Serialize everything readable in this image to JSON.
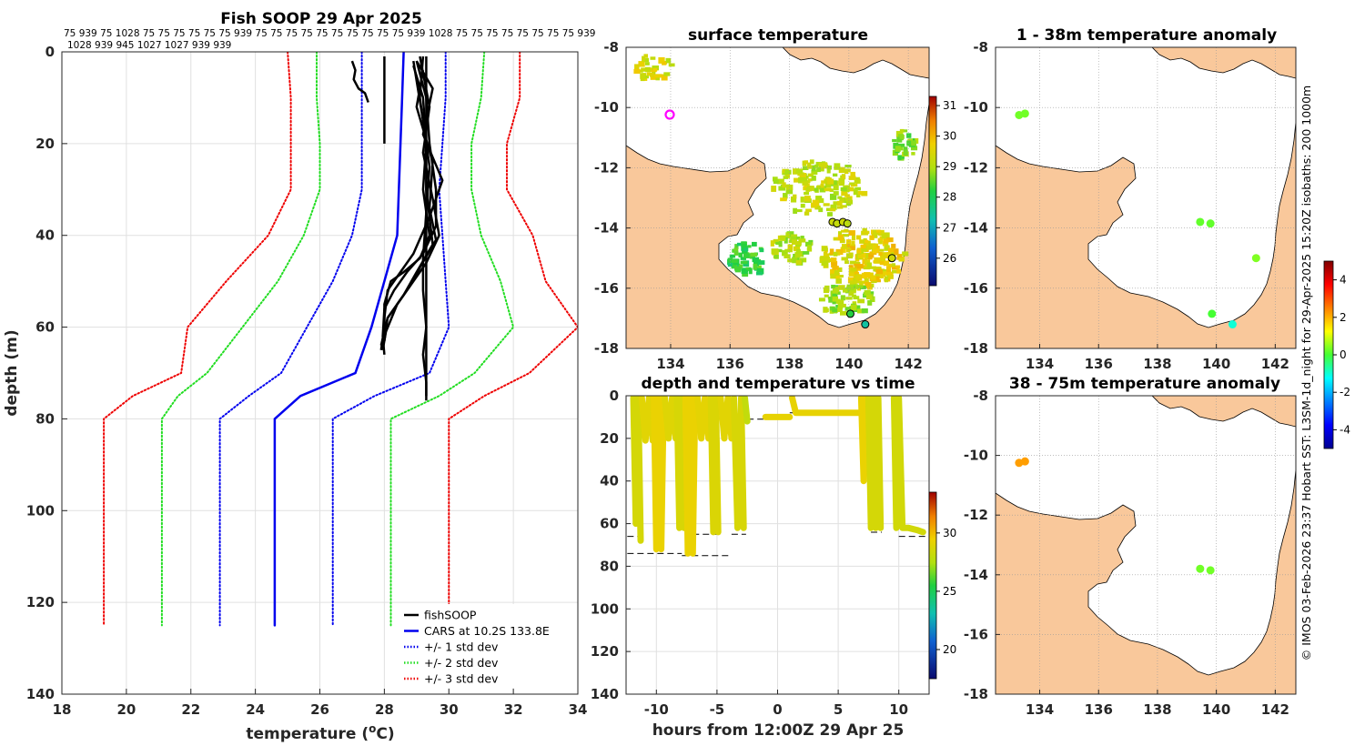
{
  "chart_data": [
    {
      "type": "line",
      "title": "Fish SOOP 29 Apr 2025",
      "header_numbers_line1": "75 939 75 1028 75 75 75 75 75 75 939 75 75 75 75 75 75 75 75 75 75 939 1028 75 75 75 75 75 75 75 75 939",
      "header_numbers_line2": "1028 939 945 1027 1027 939 939",
      "xlabel": "temperature (°C)",
      "ylabel": "depth (m)",
      "xlim": [
        18,
        34
      ],
      "ylim": [
        140,
        0
      ],
      "xticks": [
        "18",
        "20",
        "22",
        "24",
        "26",
        "28",
        "30",
        "32",
        "34"
      ],
      "yticks": [
        "0",
        "20",
        "40",
        "60",
        "80",
        "100",
        "120",
        "140"
      ],
      "legend": [
        "fishSOOP",
        "CARS at 10.2S 133.8E",
        "+/- 1 std dev",
        "+/- 2 std dev",
        "+/- 3 std dev"
      ],
      "legend_colors": [
        "#000000",
        "#0000ee",
        "#0000ee",
        "#22dd22",
        "#ee0000"
      ],
      "series": [
        {
          "name": "CARS mean",
          "color": "#0000ee",
          "depth": [
            0,
            10,
            20,
            30,
            40,
            50,
            60,
            70,
            75,
            80,
            125
          ],
          "temp": [
            28.6,
            28.55,
            28.5,
            28.45,
            28.4,
            28.0,
            27.6,
            27.1,
            25.4,
            24.6,
            24.6
          ]
        },
        {
          "name": "-1 std",
          "color": "#0000ee",
          "dotted": true,
          "depth": [
            0,
            10,
            20,
            30,
            40,
            50,
            60,
            70,
            75,
            80,
            125
          ],
          "temp": [
            27.3,
            27.3,
            27.3,
            27.3,
            27.0,
            26.4,
            25.6,
            24.8,
            23.8,
            22.9,
            22.9
          ]
        },
        {
          "name": "+1 std",
          "color": "#0000ee",
          "dotted": true,
          "depth": [
            0,
            10,
            20,
            30,
            40,
            50,
            60,
            70,
            75,
            80,
            125
          ],
          "temp": [
            29.9,
            29.9,
            29.8,
            29.7,
            29.8,
            29.9,
            30.0,
            29.4,
            27.7,
            26.4,
            26.4
          ]
        },
        {
          "name": "-2 std",
          "color": "#22dd22",
          "dotted": true,
          "depth": [
            0,
            10,
            20,
            30,
            40,
            50,
            60,
            70,
            75,
            80,
            125
          ],
          "temp": [
            25.9,
            25.9,
            26.0,
            26.0,
            25.5,
            24.7,
            23.6,
            22.5,
            21.6,
            21.1,
            21.1
          ]
        },
        {
          "name": "+2 std",
          "color": "#22dd22",
          "dotted": true,
          "depth": [
            0,
            10,
            20,
            30,
            40,
            50,
            60,
            70,
            75,
            80,
            125
          ],
          "temp": [
            31.1,
            31.0,
            30.7,
            30.7,
            31.0,
            31.6,
            32.0,
            30.8,
            29.7,
            28.2,
            28.2
          ]
        },
        {
          "name": "-3 std",
          "color": "#ee0000",
          "dotted": true,
          "depth": [
            0,
            10,
            20,
            30,
            40,
            50,
            60,
            70,
            75,
            80,
            125
          ],
          "temp": [
            25.0,
            25.1,
            25.1,
            25.1,
            24.4,
            23.1,
            21.9,
            21.7,
            20.2,
            19.3,
            19.3
          ]
        },
        {
          "name": "+3 std",
          "color": "#ee0000",
          "dotted": true,
          "depth": [
            0,
            10,
            20,
            30,
            40,
            50,
            60,
            70,
            75,
            80,
            125
          ],
          "temp": [
            32.2,
            32.2,
            31.8,
            31.8,
            32.6,
            33.0,
            34.0,
            32.5,
            31.1,
            30.0,
            30.0
          ]
        }
      ],
      "fishsoop_profiles": [
        {
          "depth": [
            2,
            4,
            6,
            8,
            9,
            11
          ],
          "temp": [
            27.0,
            27.1,
            27.05,
            27.2,
            27.4,
            27.5
          ]
        },
        {
          "depth": [
            1,
            5,
            10,
            15,
            20
          ],
          "temp": [
            28.0,
            28.0,
            28.0,
            28.0,
            28.0
          ]
        },
        {
          "depth": [
            1,
            10,
            20,
            30,
            40,
            45,
            48,
            50,
            55,
            60,
            65
          ],
          "temp": [
            29.2,
            29.1,
            29.3,
            29.2,
            29.4,
            29.1,
            28.6,
            28.2,
            28.0,
            28.0,
            27.9
          ]
        },
        {
          "depth": [
            2,
            10,
            20,
            30,
            38,
            44,
            48,
            52,
            56,
            62,
            66
          ],
          "temp": [
            29.0,
            29.3,
            29.4,
            29.6,
            29.6,
            29.2,
            28.7,
            28.3,
            28.0,
            27.95,
            28.0
          ]
        },
        {
          "depth": [
            1,
            12,
            22,
            32,
            40,
            46,
            50,
            54,
            58,
            63
          ],
          "temp": [
            29.1,
            29.4,
            29.2,
            29.5,
            29.7,
            29.3,
            28.9,
            28.5,
            28.1,
            28.0
          ]
        },
        {
          "depth": [
            3,
            10,
            20,
            30,
            42,
            48,
            53,
            58,
            64
          ],
          "temp": [
            28.9,
            29.2,
            29.3,
            29.3,
            29.5,
            29.0,
            28.6,
            28.1,
            27.9
          ]
        },
        {
          "depth": [
            1,
            10,
            20,
            30,
            40,
            50,
            55,
            60,
            65,
            70,
            75
          ],
          "temp": [
            29.3,
            29.3,
            29.3,
            29.3,
            29.3,
            29.3,
            29.3,
            29.3,
            29.3,
            29.3,
            29.3
          ]
        },
        {
          "depth": [
            2,
            15,
            25,
            35,
            45,
            52,
            60,
            66,
            72,
            76
          ],
          "temp": [
            28.9,
            29.2,
            29.4,
            29.3,
            29.2,
            29.2,
            29.3,
            29.2,
            29.3,
            29.3
          ]
        },
        {
          "depth": [
            2,
            8,
            18,
            28,
            36,
            44,
            49,
            52,
            58,
            62
          ],
          "temp": [
            29.0,
            29.5,
            29.2,
            29.8,
            29.4,
            28.9,
            28.4,
            28.1,
            28.0,
            28.0
          ]
        },
        {
          "depth": [
            4,
            12,
            24,
            34,
            41,
            47,
            51,
            55,
            61,
            65
          ],
          "temp": [
            29.2,
            29.0,
            29.5,
            29.4,
            29.6,
            29.1,
            28.8,
            28.4,
            28.05,
            27.95
          ]
        }
      ]
    },
    {
      "type": "heatmap",
      "title": "surface temperature",
      "xlim": [
        132.5,
        142.7
      ],
      "ylim": [
        -18,
        -8
      ],
      "xticks": [
        "134",
        "136",
        "138",
        "140",
        "142"
      ],
      "yticks": [
        "-8",
        "-10",
        "-12",
        "-14",
        "-16",
        "-18"
      ],
      "colorbar_ticks": [
        "26",
        "27",
        "28",
        "29",
        "30",
        "31"
      ],
      "colorbar_range": [
        25.1,
        31.3
      ]
    },
    {
      "type": "scatter",
      "title": "1 - 38m temperature anomaly",
      "xlim": [
        132.5,
        142.7
      ],
      "ylim": [
        -18,
        -8
      ],
      "xticks": [
        "134",
        "136",
        "138",
        "140",
        "142"
      ],
      "yticks": [
        "-8",
        "-10",
        "-12",
        "-14",
        "-16",
        "-18"
      ],
      "points": [
        {
          "lon": 133.3,
          "lat": -10.25,
          "anomaly": 0.3
        },
        {
          "lon": 133.5,
          "lat": -10.2,
          "anomaly": 0.3
        },
        {
          "lon": 139.45,
          "lat": -13.8,
          "anomaly": 0.2
        },
        {
          "lon": 139.8,
          "lat": -13.85,
          "anomaly": 0.2
        },
        {
          "lon": 141.35,
          "lat": -15.0,
          "anomaly": 0.4
        },
        {
          "lon": 139.85,
          "lat": -16.85,
          "anomaly": 0.0
        },
        {
          "lon": 140.55,
          "lat": -17.2,
          "anomaly": -1.0
        }
      ]
    },
    {
      "type": "scatter",
      "title": "38 - 75m temperature anomaly",
      "xlim": [
        132.5,
        142.7
      ],
      "ylim": [
        -18,
        -8
      ],
      "xticks": [
        "134",
        "136",
        "138",
        "140",
        "142"
      ],
      "yticks": [
        "-8",
        "-10",
        "-12",
        "-14",
        "-16",
        "-18"
      ],
      "points": [
        {
          "lon": 133.3,
          "lat": -10.25,
          "anomaly": 2.2
        },
        {
          "lon": 133.5,
          "lat": -10.2,
          "anomaly": 2.2
        },
        {
          "lon": 139.45,
          "lat": -13.8,
          "anomaly": 0.3
        },
        {
          "lon": 139.8,
          "lat": -13.85,
          "anomaly": 0.3
        }
      ],
      "colorbar_ticks": [
        "-4",
        "-2",
        "0",
        "2",
        "4"
      ],
      "colorbar_range": [
        -5,
        5
      ]
    },
    {
      "type": "scatter",
      "title": "depth and temperature vs time",
      "xlabel": "hours from 12:00Z 29 Apr 25",
      "xlim": [
        -12.5,
        12.5
      ],
      "ylim": [
        140,
        0
      ],
      "xticks": [
        "-10",
        "-5",
        "0",
        "5",
        "10"
      ],
      "yticks": [
        "0",
        "20",
        "40",
        "60",
        "80",
        "100",
        "120",
        "140"
      ],
      "colorbar_ticks": [
        "20",
        "25",
        "30"
      ],
      "colorbar_range": [
        17.5,
        33.5
      ],
      "tracks": [
        {
          "t": [
            -11.9,
            -11.7,
            -11.5,
            -11.3
          ],
          "d": [
            1,
            60,
            1,
            68
          ],
          "temp": 28.6
        },
        {
          "t": [
            -11.2,
            -10.9,
            -10.6,
            -10.3
          ],
          "d": [
            1,
            21,
            1,
            21
          ],
          "temp": 29.0
        },
        {
          "t": [
            -10.2,
            -10.0,
            -9.8,
            -9.6,
            -9.4
          ],
          "d": [
            1,
            72,
            1,
            72,
            1
          ],
          "temp": 29.3
        },
        {
          "t": [
            -9.3,
            -9.0,
            -8.7,
            -8.4
          ],
          "d": [
            1,
            20,
            1,
            20
          ],
          "temp": 28.9
        },
        {
          "t": [
            -8.3,
            -8.1,
            -7.9,
            -7.7
          ],
          "d": [
            1,
            62,
            1,
            62
          ],
          "temp": 28.7
        },
        {
          "t": [
            -7.6,
            -7.4,
            -7.2,
            -7.0,
            -6.8
          ],
          "d": [
            1,
            74,
            1,
            74,
            1
          ],
          "temp": 29.3
        },
        {
          "t": [
            -6.6,
            -6.3,
            -6.0,
            -5.7
          ],
          "d": [
            1,
            20,
            1,
            20
          ],
          "temp": 29.1
        },
        {
          "t": [
            -5.5,
            -5.3,
            -5.1,
            -4.9
          ],
          "d": [
            1,
            64,
            1,
            64
          ],
          "temp": 28.8
        },
        {
          "t": [
            -4.7,
            -4.4,
            -4.1,
            -3.8
          ],
          "d": [
            1,
            20,
            1,
            20
          ],
          "temp": 29.0
        },
        {
          "t": [
            -3.6,
            -3.3,
            -3.0,
            -2.8
          ],
          "d": [
            1,
            62,
            1,
            62
          ],
          "temp": 28.7
        },
        {
          "t": [
            -2.7,
            -2.5
          ],
          "d": [
            1,
            12
          ],
          "temp": 28.0
        },
        {
          "t": [
            -1.0,
            1.0
          ],
          "d": [
            10,
            10
          ],
          "temp": 29.2
        },
        {
          "t": [
            1.2,
            1.5,
            3.0,
            5.0,
            6.7
          ],
          "d": [
            1,
            8,
            8,
            8,
            8
          ],
          "temp": 29.2
        },
        {
          "t": [
            6.9,
            7.1,
            7.3
          ],
          "d": [
            1,
            40,
            1
          ],
          "temp": 29.3
        },
        {
          "t": [
            7.5,
            7.7,
            7.9,
            8.1,
            8.3,
            8.5
          ],
          "d": [
            1,
            62,
            1,
            62,
            1,
            62
          ],
          "temp": 28.6
        },
        {
          "t": [
            9.6,
            9.8,
            10.0,
            10.3,
            10.8,
            11.5,
            12.0
          ],
          "d": [
            1,
            62,
            1,
            62,
            62,
            63,
            64
          ],
          "temp": 28.5
        }
      ],
      "bottom_markers": [
        {
          "t0": -12.4,
          "t1": -11.2,
          "d": 66
        },
        {
          "t0": -12.4,
          "t1": -7.9,
          "d": 74
        },
        {
          "t0": -7.9,
          "t1": -3.8,
          "d": 75
        },
        {
          "t0": -7.0,
          "t1": -5.0,
          "d": 65
        },
        {
          "t0": -3.8,
          "t1": -2.6,
          "d": 65
        },
        {
          "t0": -2.5,
          "t1": 0.3,
          "d": 11
        },
        {
          "t0": 1.0,
          "t1": 7.0,
          "d": 8
        },
        {
          "t0": 7.7,
          "t1": 8.6,
          "d": 64
        },
        {
          "t0": 10.0,
          "t1": 12.3,
          "d": 66
        }
      ]
    }
  ],
  "side_caption": "© IMOS 03-Feb-2026 23:37 Hobart SST: L3SM-1d_night for 29-Apr-2025 15:20Z isobaths: 200  1000m",
  "colors": {
    "land": "#f9c89b",
    "grid": "#dddddd"
  }
}
